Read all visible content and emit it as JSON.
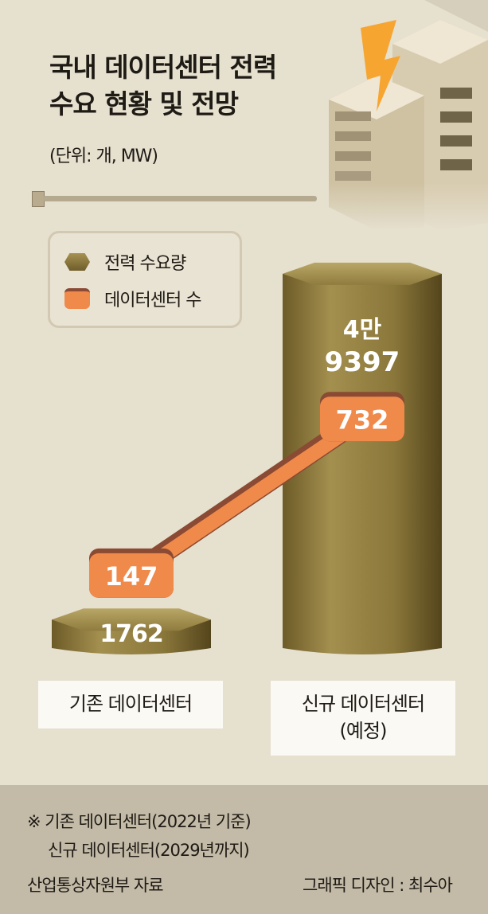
{
  "chart_data": {
    "type": "bar+line",
    "title": "국내 데이터센터 전력 수요 현황 및 전망",
    "unit": "(단위: 개, MW)",
    "categories": [
      "기존 데이터센터",
      "신규 데이터센터 (예정)"
    ],
    "series": [
      {
        "name": "전력 수요량",
        "type": "bar",
        "values": [
          1762,
          49397
        ],
        "labels": [
          "1762",
          "4만 9397"
        ],
        "color": "#8c7a3c"
      },
      {
        "name": "데이터센터 수",
        "type": "line",
        "values": [
          147,
          732
        ],
        "labels": [
          "147",
          "732"
        ],
        "color": "#f08a4b"
      }
    ]
  },
  "category_labels": {
    "c0": "기존 데이터센터",
    "c1_line1": "신규 데이터센터",
    "c1_line2": "(예정)"
  },
  "title_lines": [
    "국내 데이터센터 전력",
    "수요 현황 및 전망"
  ],
  "legend": {
    "power": "전력 수요량",
    "count": "데이터센터 수"
  },
  "footer": {
    "note1": "※ 기존 데이터센터(2022년 기준)",
    "note2": "신규 데이터센터(2029년까지)",
    "source": "산업통상자원부 자료",
    "credit": "그래픽 디자인 : 최수아"
  }
}
